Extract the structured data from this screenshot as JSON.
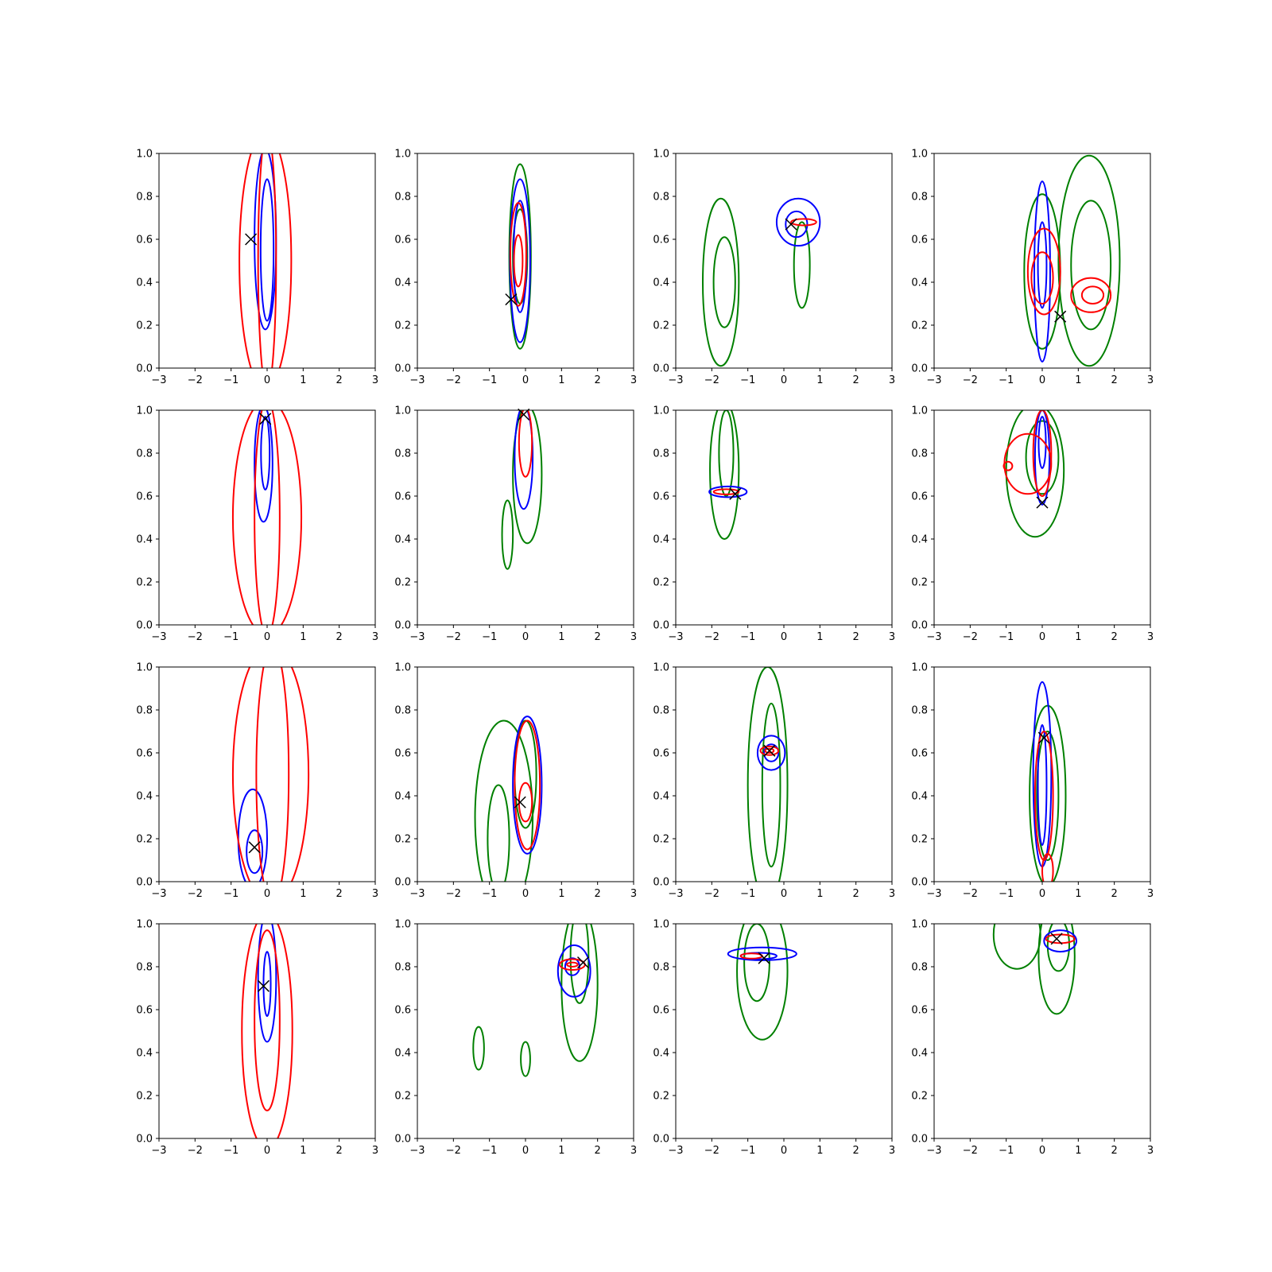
{
  "colors": {
    "blue": "#0000ff",
    "red": "#ff0000",
    "green": "#008000",
    "marker": "#000000"
  },
  "chart_data": {
    "type": "contour",
    "layout": "4x4 grid",
    "xlim": [
      -3,
      3
    ],
    "ylim": [
      0,
      1
    ],
    "x_ticks": [
      "−3",
      "−2",
      "−1",
      "0",
      "1",
      "2",
      "3"
    ],
    "y_ticks": [
      "0.0",
      "0.2",
      "0.4",
      "0.6",
      "0.8",
      "1.0"
    ],
    "panels": [
      {
        "marker": [
          -0.45,
          0.6
        ],
        "contours": [
          {
            "color": "blue",
            "cx": -0.05,
            "cy": 0.6,
            "rx": 0.3,
            "ry": 0.42
          },
          {
            "color": "blue",
            "cx": 0.0,
            "cy": 0.55,
            "rx": 0.18,
            "ry": 0.33
          },
          {
            "color": "red",
            "cx": -0.05,
            "cy": 0.5,
            "rx": 0.72,
            "ry": 0.6
          },
          {
            "color": "red",
            "cx": 0.0,
            "cy": 0.5,
            "rx": 0.25,
            "ry": 0.6
          }
        ]
      },
      {
        "marker": [
          -0.4,
          0.32
        ],
        "contours": [
          {
            "color": "green",
            "cx": -0.15,
            "cy": 0.52,
            "rx": 0.3,
            "ry": 0.43
          },
          {
            "color": "green",
            "cx": -0.15,
            "cy": 0.52,
            "rx": 0.2,
            "ry": 0.22
          },
          {
            "color": "blue",
            "cx": -0.15,
            "cy": 0.5,
            "rx": 0.28,
            "ry": 0.38
          },
          {
            "color": "blue",
            "cx": -0.15,
            "cy": 0.52,
            "rx": 0.18,
            "ry": 0.26
          },
          {
            "color": "red",
            "cx": -0.2,
            "cy": 0.53,
            "rx": 0.22,
            "ry": 0.24
          },
          {
            "color": "red",
            "cx": -0.2,
            "cy": 0.5,
            "rx": 0.12,
            "ry": 0.12
          }
        ]
      },
      {
        "marker": [
          0.2,
          0.67
        ],
        "contours": [
          {
            "color": "green",
            "cx": -1.75,
            "cy": 0.4,
            "rx": 0.5,
            "ry": 0.39
          },
          {
            "color": "green",
            "cx": -1.65,
            "cy": 0.4,
            "rx": 0.3,
            "ry": 0.21
          },
          {
            "color": "green",
            "cx": 0.5,
            "cy": 0.48,
            "rx": 0.22,
            "ry": 0.2
          },
          {
            "color": "blue",
            "cx": 0.4,
            "cy": 0.68,
            "rx": 0.6,
            "ry": 0.11
          },
          {
            "color": "blue",
            "cx": 0.35,
            "cy": 0.67,
            "rx": 0.3,
            "ry": 0.06
          },
          {
            "color": "red",
            "cx": 0.55,
            "cy": 0.68,
            "rx": 0.35,
            "ry": 0.015
          }
        ]
      },
      {
        "marker": [
          0.5,
          0.24
        ],
        "contours": [
          {
            "color": "green",
            "cx": 0.0,
            "cy": 0.45,
            "rx": 0.5,
            "ry": 0.36
          },
          {
            "color": "green",
            "cx": 1.3,
            "cy": 0.5,
            "rx": 0.85,
            "ry": 0.49
          },
          {
            "color": "green",
            "cx": 1.35,
            "cy": 0.48,
            "rx": 0.55,
            "ry": 0.3
          },
          {
            "color": "blue",
            "cx": 0.0,
            "cy": 0.45,
            "rx": 0.22,
            "ry": 0.42
          },
          {
            "color": "blue",
            "cx": 0.0,
            "cy": 0.48,
            "rx": 0.12,
            "ry": 0.2
          },
          {
            "color": "red",
            "cx": 0.05,
            "cy": 0.45,
            "rx": 0.45,
            "ry": 0.2
          },
          {
            "color": "red",
            "cx": 0.0,
            "cy": 0.42,
            "rx": 0.3,
            "ry": 0.12
          },
          {
            "color": "red",
            "cx": 1.35,
            "cy": 0.34,
            "rx": 0.55,
            "ry": 0.08
          },
          {
            "color": "red",
            "cx": 1.4,
            "cy": 0.34,
            "rx": 0.3,
            "ry": 0.04
          }
        ]
      },
      {
        "marker": [
          -0.05,
          0.96
        ],
        "contours": [
          {
            "color": "blue",
            "cx": -0.1,
            "cy": 0.75,
            "rx": 0.25,
            "ry": 0.27
          },
          {
            "color": "blue",
            "cx": -0.05,
            "cy": 0.8,
            "rx": 0.12,
            "ry": 0.17
          },
          {
            "color": "red",
            "cx": 0.0,
            "cy": 0.5,
            "rx": 0.95,
            "ry": 0.55
          },
          {
            "color": "red",
            "cx": 0.0,
            "cy": 0.5,
            "rx": 0.35,
            "ry": 0.55
          }
        ]
      },
      {
        "marker": [
          -0.05,
          0.98
        ],
        "contours": [
          {
            "color": "green",
            "cx": 0.05,
            "cy": 0.7,
            "rx": 0.4,
            "ry": 0.32
          },
          {
            "color": "green",
            "cx": -0.5,
            "cy": 0.42,
            "rx": 0.15,
            "ry": 0.16
          },
          {
            "color": "blue",
            "cx": -0.05,
            "cy": 0.78,
            "rx": 0.25,
            "ry": 0.24
          },
          {
            "color": "red",
            "cx": 0.0,
            "cy": 0.85,
            "rx": 0.18,
            "ry": 0.16
          }
        ]
      },
      {
        "marker": [
          -1.35,
          0.61
        ],
        "contours": [
          {
            "color": "green",
            "cx": -1.65,
            "cy": 0.72,
            "rx": 0.4,
            "ry": 0.32
          },
          {
            "color": "green",
            "cx": -1.6,
            "cy": 0.8,
            "rx": 0.2,
            "ry": 0.2
          },
          {
            "color": "blue",
            "cx": -1.55,
            "cy": 0.62,
            "rx": 0.52,
            "ry": 0.025
          },
          {
            "color": "red",
            "cx": -1.6,
            "cy": 0.62,
            "rx": 0.35,
            "ry": 0.012
          }
        ]
      },
      {
        "marker": [
          0.0,
          0.57
        ],
        "contours": [
          {
            "color": "green",
            "cx": -0.2,
            "cy": 0.72,
            "rx": 0.8,
            "ry": 0.31
          },
          {
            "color": "green",
            "cx": 0.0,
            "cy": 0.78,
            "rx": 0.45,
            "ry": 0.17
          },
          {
            "color": "blue",
            "cx": 0.0,
            "cy": 0.78,
            "rx": 0.2,
            "ry": 0.22
          },
          {
            "color": "blue",
            "cx": 0.0,
            "cy": 0.85,
            "rx": 0.1,
            "ry": 0.12
          },
          {
            "color": "red",
            "cx": -0.4,
            "cy": 0.75,
            "rx": 0.65,
            "ry": 0.14
          },
          {
            "color": "red",
            "cx": 0.0,
            "cy": 0.8,
            "rx": 0.25,
            "ry": 0.2
          },
          {
            "color": "red",
            "cx": -0.95,
            "cy": 0.74,
            "rx": 0.12,
            "ry": 0.02
          }
        ]
      },
      {
        "marker": [
          -0.35,
          0.16
        ],
        "contours": [
          {
            "color": "blue",
            "cx": -0.4,
            "cy": 0.2,
            "rx": 0.4,
            "ry": 0.23
          },
          {
            "color": "blue",
            "cx": -0.35,
            "cy": 0.14,
            "rx": 0.22,
            "ry": 0.1
          },
          {
            "color": "red",
            "cx": 0.1,
            "cy": 0.5,
            "rx": 1.05,
            "ry": 0.6
          },
          {
            "color": "red",
            "cx": 0.15,
            "cy": 0.5,
            "rx": 0.45,
            "ry": 0.6
          }
        ]
      },
      {
        "marker": [
          -0.15,
          0.37
        ],
        "contours": [
          {
            "color": "green",
            "cx": -0.6,
            "cy": 0.3,
            "rx": 0.8,
            "ry": 0.45
          },
          {
            "color": "green",
            "cx": -0.75,
            "cy": 0.2,
            "rx": 0.3,
            "ry": 0.25
          },
          {
            "color": "green",
            "cx": 0.0,
            "cy": 0.5,
            "rx": 0.3,
            "ry": 0.25
          },
          {
            "color": "blue",
            "cx": 0.05,
            "cy": 0.45,
            "rx": 0.4,
            "ry": 0.32
          },
          {
            "color": "red",
            "cx": 0.05,
            "cy": 0.45,
            "rx": 0.35,
            "ry": 0.3
          },
          {
            "color": "red",
            "cx": 0.0,
            "cy": 0.37,
            "rx": 0.18,
            "ry": 0.09
          }
        ]
      },
      {
        "marker": [
          -0.4,
          0.61
        ],
        "contours": [
          {
            "color": "green",
            "cx": -0.45,
            "cy": 0.45,
            "rx": 0.55,
            "ry": 0.55
          },
          {
            "color": "green",
            "cx": -0.35,
            "cy": 0.45,
            "rx": 0.25,
            "ry": 0.38
          },
          {
            "color": "blue",
            "cx": -0.35,
            "cy": 0.6,
            "rx": 0.38,
            "ry": 0.08
          },
          {
            "color": "blue",
            "cx": -0.35,
            "cy": 0.6,
            "rx": 0.2,
            "ry": 0.04
          },
          {
            "color": "red",
            "cx": -0.4,
            "cy": 0.61,
            "rx": 0.25,
            "ry": 0.02
          },
          {
            "color": "red",
            "cx": -0.4,
            "cy": 0.61,
            "rx": 0.12,
            "ry": 0.01
          }
        ]
      },
      {
        "marker": [
          0.05,
          0.67
        ],
        "contours": [
          {
            "color": "green",
            "cx": 0.15,
            "cy": 0.4,
            "rx": 0.5,
            "ry": 0.42
          },
          {
            "color": "green",
            "cx": 0.15,
            "cy": 0.4,
            "rx": 0.3,
            "ry": 0.3
          },
          {
            "color": "blue",
            "cx": 0.0,
            "cy": 0.5,
            "rx": 0.25,
            "ry": 0.43
          },
          {
            "color": "blue",
            "cx": 0.0,
            "cy": 0.45,
            "rx": 0.12,
            "ry": 0.28
          },
          {
            "color": "red",
            "cx": 0.05,
            "cy": 0.4,
            "rx": 0.25,
            "ry": 0.3
          },
          {
            "color": "red",
            "cx": 0.15,
            "cy": 0.05,
            "rx": 0.15,
            "ry": 0.08
          }
        ]
      },
      {
        "marker": [
          -0.1,
          0.71
        ],
        "contours": [
          {
            "color": "blue",
            "cx": 0.0,
            "cy": 0.75,
            "rx": 0.25,
            "ry": 0.3
          },
          {
            "color": "blue",
            "cx": 0.0,
            "cy": 0.72,
            "rx": 0.1,
            "ry": 0.15
          },
          {
            "color": "red",
            "cx": 0.0,
            "cy": 0.5,
            "rx": 0.7,
            "ry": 0.55
          },
          {
            "color": "red",
            "cx": 0.0,
            "cy": 0.55,
            "rx": 0.35,
            "ry": 0.42
          }
        ]
      },
      {
        "marker": [
          1.6,
          0.82
        ],
        "contours": [
          {
            "color": "green",
            "cx": 1.5,
            "cy": 0.72,
            "rx": 0.5,
            "ry": 0.36
          },
          {
            "color": "green",
            "cx": 1.5,
            "cy": 0.85,
            "rx": 0.25,
            "ry": 0.22
          },
          {
            "color": "green",
            "cx": -1.3,
            "cy": 0.42,
            "rx": 0.15,
            "ry": 0.1
          },
          {
            "color": "green",
            "cx": 0.0,
            "cy": 0.37,
            "rx": 0.13,
            "ry": 0.08
          },
          {
            "color": "blue",
            "cx": 1.35,
            "cy": 0.78,
            "rx": 0.45,
            "ry": 0.12
          },
          {
            "color": "blue",
            "cx": 1.3,
            "cy": 0.8,
            "rx": 0.2,
            "ry": 0.04
          },
          {
            "color": "red",
            "cx": 1.3,
            "cy": 0.81,
            "rx": 0.35,
            "ry": 0.025
          },
          {
            "color": "red",
            "cx": 1.3,
            "cy": 0.81,
            "rx": 0.15,
            "ry": 0.01
          }
        ]
      },
      {
        "marker": [
          -0.55,
          0.84
        ],
        "contours": [
          {
            "color": "green",
            "cx": -0.6,
            "cy": 0.78,
            "rx": 0.7,
            "ry": 0.32
          },
          {
            "color": "green",
            "cx": -0.75,
            "cy": 0.82,
            "rx": 0.35,
            "ry": 0.18
          },
          {
            "color": "blue",
            "cx": -0.6,
            "cy": 0.86,
            "rx": 0.95,
            "ry": 0.03
          },
          {
            "color": "blue",
            "cx": -0.7,
            "cy": 0.85,
            "rx": 0.5,
            "ry": 0.015
          },
          {
            "color": "red",
            "cx": -0.9,
            "cy": 0.85,
            "rx": 0.3,
            "ry": 0.012
          }
        ]
      },
      {
        "marker": [
          0.4,
          0.93
        ],
        "contours": [
          {
            "color": "green",
            "cx": 0.4,
            "cy": 0.85,
            "rx": 0.5,
            "ry": 0.27
          },
          {
            "color": "green",
            "cx": 0.45,
            "cy": 0.9,
            "rx": 0.3,
            "ry": 0.12
          },
          {
            "color": "green",
            "cx": -0.7,
            "cy": 0.95,
            "rx": 0.65,
            "ry": 0.16
          },
          {
            "color": "blue",
            "cx": 0.5,
            "cy": 0.92,
            "rx": 0.45,
            "ry": 0.05
          },
          {
            "color": "red",
            "cx": 0.5,
            "cy": 0.93,
            "rx": 0.4,
            "ry": 0.02
          }
        ]
      }
    ]
  }
}
